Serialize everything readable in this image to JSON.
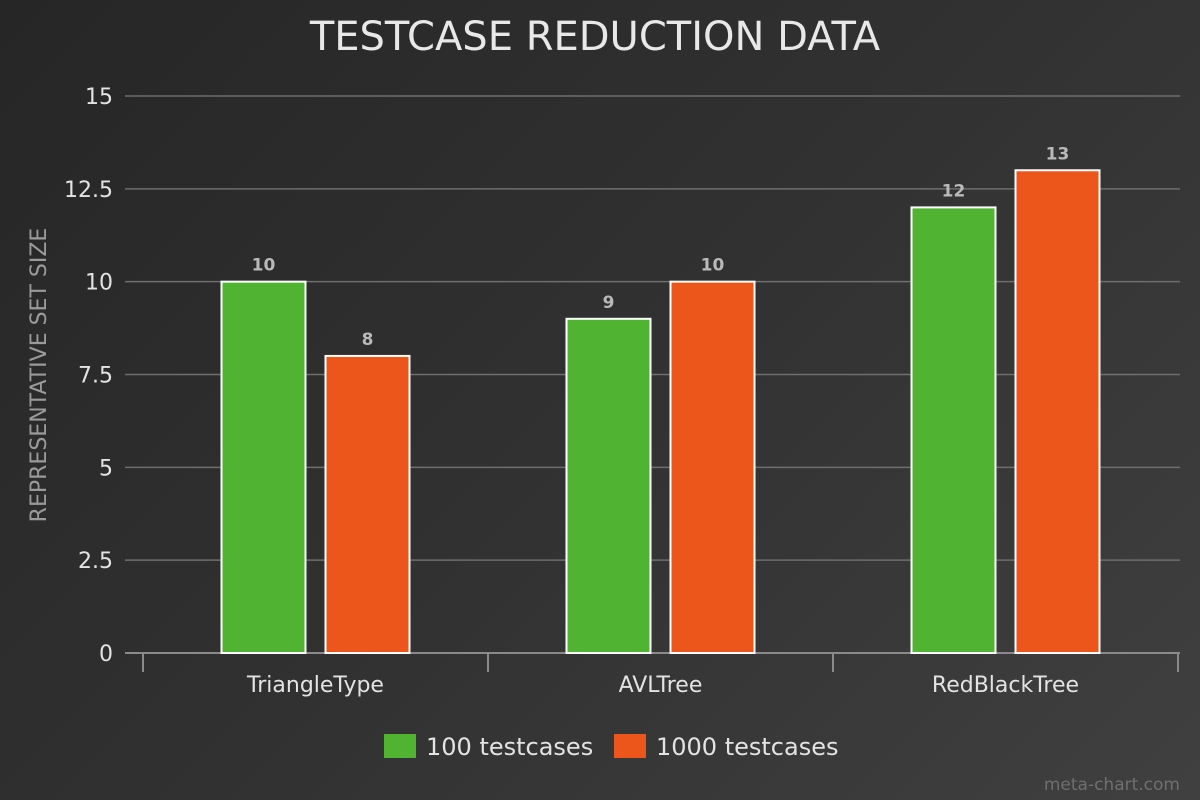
{
  "chart_data": {
    "type": "bar",
    "title": "TESTCASE REDUCTION DATA",
    "xlabel": "",
    "ylabel": "REPRESENTATIVE SET SIZE",
    "categories": [
      "TriangleType",
      "AVLTree",
      "RedBlackTree"
    ],
    "series": [
      {
        "name": "100 testcases",
        "values": [
          10,
          9,
          12
        ],
        "color": "#50b432"
      },
      {
        "name": "1000 testcases",
        "values": [
          8,
          10,
          13
        ],
        "color": "#ed561b"
      }
    ],
    "ylim": [
      0,
      15
    ],
    "yticks": [
      "0",
      "2.5",
      "5",
      "7.5",
      "10",
      "12.5",
      "15"
    ],
    "grid": true,
    "legend_position": "bottom-center"
  },
  "watermark": "meta-chart.com"
}
